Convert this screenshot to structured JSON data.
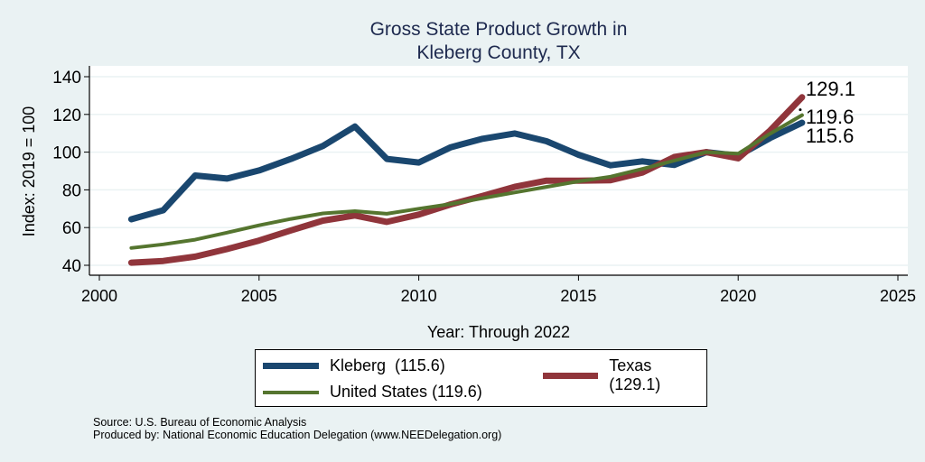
{
  "chart_data": {
    "type": "line",
    "title": [
      "Gross State Product Growth in",
      "Kleberg County, TX"
    ],
    "xlabel": "Year: Through 2022",
    "ylabel": "Index: 2019 = 100",
    "xlim": [
      1999.7,
      2025.3
    ],
    "ylim": [
      35,
      145
    ],
    "xticks": [
      2000,
      2005,
      2010,
      2015,
      2020,
      2025
    ],
    "yticks": [
      40,
      60,
      80,
      100,
      120,
      140
    ],
    "grid": "horizontal",
    "legend_position": "bottom",
    "x": [
      2001,
      2002,
      2003,
      2004,
      2005,
      2006,
      2007,
      2008,
      2009,
      2010,
      2011,
      2012,
      2013,
      2014,
      2015,
      2016,
      2017,
      2018,
      2019,
      2020,
      2021,
      2022
    ],
    "series": [
      {
        "name": "Kleberg",
        "legend_label": "Kleberg  (115.6)",
        "color": "#1a476f",
        "end_label": "115.6",
        "values": [
          64.4,
          69.2,
          87.6,
          86.0,
          90.3,
          96.4,
          103.3,
          113.6,
          96.4,
          94.5,
          102.6,
          107.1,
          109.9,
          105.8,
          98.6,
          93.0,
          95.1,
          93.2,
          100.0,
          98.1,
          107.5,
          115.6
        ]
      },
      {
        "name": "Texas",
        "legend_label": "Texas (129.1)",
        "color": "#90353b",
        "end_label": "129.1",
        "values": [
          41.4,
          42.3,
          44.6,
          48.6,
          53.1,
          58.5,
          63.7,
          66.4,
          63.0,
          66.9,
          72.3,
          76.8,
          81.6,
          84.9,
          84.9,
          85.1,
          89.2,
          97.4,
          100.0,
          96.7,
          111.5,
          129.1
        ]
      },
      {
        "name": "United States",
        "legend_label": "United States (119.6)",
        "color": "#55752f",
        "end_label": "119.6",
        "values": [
          49.2,
          51.1,
          53.6,
          57.3,
          61.2,
          64.6,
          67.5,
          68.7,
          67.3,
          70.0,
          72.5,
          75.6,
          78.6,
          81.6,
          84.5,
          87.0,
          91.1,
          95.5,
          100.0,
          99.2,
          109.8,
          119.6
        ]
      }
    ],
    "notes": [
      "Source: U.S. Bureau of Economic Analysis",
      "Produced by: National Economic Education Delegation (www.NEEDelegation.org)"
    ]
  }
}
